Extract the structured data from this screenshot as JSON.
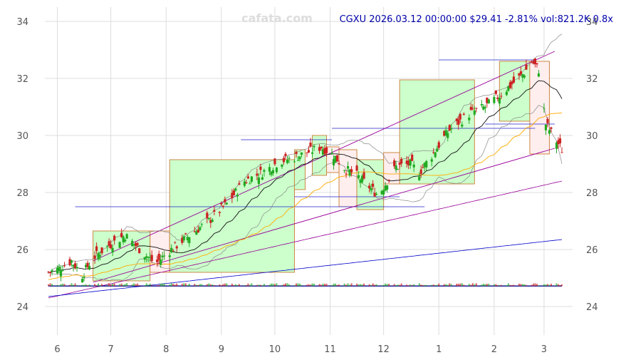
{
  "header": {
    "watermark": "cafata.com",
    "quote": "CGXU 2026.03.12 00:00:00 $29.41 -2.81% vol:821.2K 0.8x"
  },
  "chart_data": {
    "type": "candlestick",
    "ticker": "CGXU",
    "ylim": [
      23.0,
      34.5
    ],
    "y_ticks": [
      24,
      26,
      28,
      30,
      32,
      34
    ],
    "x_ticks": [
      {
        "label": "6",
        "day": 0
      },
      {
        "label": "7",
        "day": 30
      },
      {
        "label": "8",
        "day": 61
      },
      {
        "label": "9",
        "day": 92
      },
      {
        "label": "10",
        "day": 122
      },
      {
        "label": "11",
        "day": 153
      },
      {
        "label": "12",
        "day": 183
      },
      {
        "label": "1",
        "day": 214
      },
      {
        "label": "2",
        "day": 245
      },
      {
        "label": "3",
        "day": 273
      }
    ],
    "xlim": [
      -7,
      289
    ],
    "colors": {
      "up": "#22aa22",
      "down": "#cc2222",
      "grid": "#dddddd",
      "ma_short": "#111111",
      "ma_mid": "#ffaa00",
      "ma_long": "#990099",
      "ma_xlong": "#0000cc",
      "band": "#888888",
      "box_up_fill": "#ccffcc",
      "box_down_fill": "#ffeeee",
      "box_edge": "#cc8844"
    },
    "anchors": [
      [
        -5,
        25.2
      ],
      [
        0,
        25.3
      ],
      [
        8,
        25.6
      ],
      [
        14,
        25.1
      ],
      [
        20,
        25.7
      ],
      [
        28,
        26.1
      ],
      [
        38,
        26.5
      ],
      [
        48,
        25.9
      ],
      [
        55,
        25.5
      ],
      [
        62,
        25.9
      ],
      [
        72,
        26.4
      ],
      [
        85,
        27.0
      ],
      [
        95,
        27.6
      ],
      [
        105,
        28.4
      ],
      [
        115,
        28.7
      ],
      [
        125,
        29.1
      ],
      [
        132,
        29.2
      ],
      [
        140,
        29.4
      ],
      [
        148,
        29.6
      ],
      [
        155,
        29.3
      ],
      [
        162,
        28.8
      ],
      [
        168,
        28.6
      ],
      [
        175,
        28.2
      ],
      [
        180,
        27.9
      ],
      [
        190,
        28.9
      ],
      [
        198,
        29.0
      ],
      [
        203,
        28.7
      ],
      [
        210,
        29.3
      ],
      [
        220,
        30.2
      ],
      [
        232,
        30.8
      ],
      [
        240,
        31.0
      ],
      [
        248,
        31.4
      ],
      [
        255,
        31.8
      ],
      [
        262,
        32.2
      ],
      [
        266,
        32.6
      ],
      [
        270,
        32.3
      ],
      [
        274,
        30.4
      ],
      [
        278,
        30.0
      ],
      [
        283,
        29.5
      ]
    ],
    "boxes": [
      {
        "d0": 20,
        "d1": 52,
        "low": 24.9,
        "high": 26.65,
        "kind": "up"
      },
      {
        "d0": 52,
        "d1": 63,
        "low": 25.2,
        "high": 26.65,
        "kind": "down"
      },
      {
        "d0": 63,
        "d1": 133,
        "low": 25.2,
        "high": 29.15,
        "kind": "up"
      },
      {
        "d0": 133,
        "d1": 139,
        "low": 28.1,
        "high": 29.5,
        "kind": "up"
      },
      {
        "d0": 143,
        "d1": 151,
        "low": 28.6,
        "high": 30.0,
        "kind": "up"
      },
      {
        "d0": 151,
        "d1": 158,
        "low": 28.7,
        "high": 29.6,
        "kind": "down"
      },
      {
        "d0": 158,
        "d1": 168,
        "low": 27.5,
        "high": 29.5,
        "kind": "down"
      },
      {
        "d0": 168,
        "d1": 183,
        "low": 27.4,
        "high": 29.15,
        "kind": "up"
      },
      {
        "d0": 183,
        "d1": 192,
        "low": 28.3,
        "high": 29.4,
        "kind": "down"
      },
      {
        "d0": 192,
        "d1": 234,
        "low": 28.3,
        "high": 31.95,
        "kind": "up"
      },
      {
        "d0": 248,
        "d1": 265,
        "low": 30.5,
        "high": 32.6,
        "kind": "up"
      },
      {
        "d0": 265,
        "d1": 276,
        "low": 29.35,
        "high": 32.6,
        "kind": "down"
      }
    ],
    "channels": [
      {
        "from": [
          20,
          25.6
        ],
        "to": [
          279,
          32.95
        ]
      },
      {
        "from": [
          20,
          24.85
        ],
        "to": [
          279,
          29.55
        ]
      }
    ],
    "levels": [
      {
        "d0": 10,
        "d1": 206,
        "y": 27.5
      },
      {
        "d0": 103,
        "d1": 154,
        "y": 29.85
      },
      {
        "d0": 133,
        "d1": 192,
        "y": 27.85
      },
      {
        "d0": 154,
        "d1": 268,
        "y": 30.25
      },
      {
        "d0": 214,
        "d1": 268,
        "y": 32.65
      },
      {
        "d0": 240,
        "d1": 279,
        "y": 30.4
      }
    ]
  }
}
